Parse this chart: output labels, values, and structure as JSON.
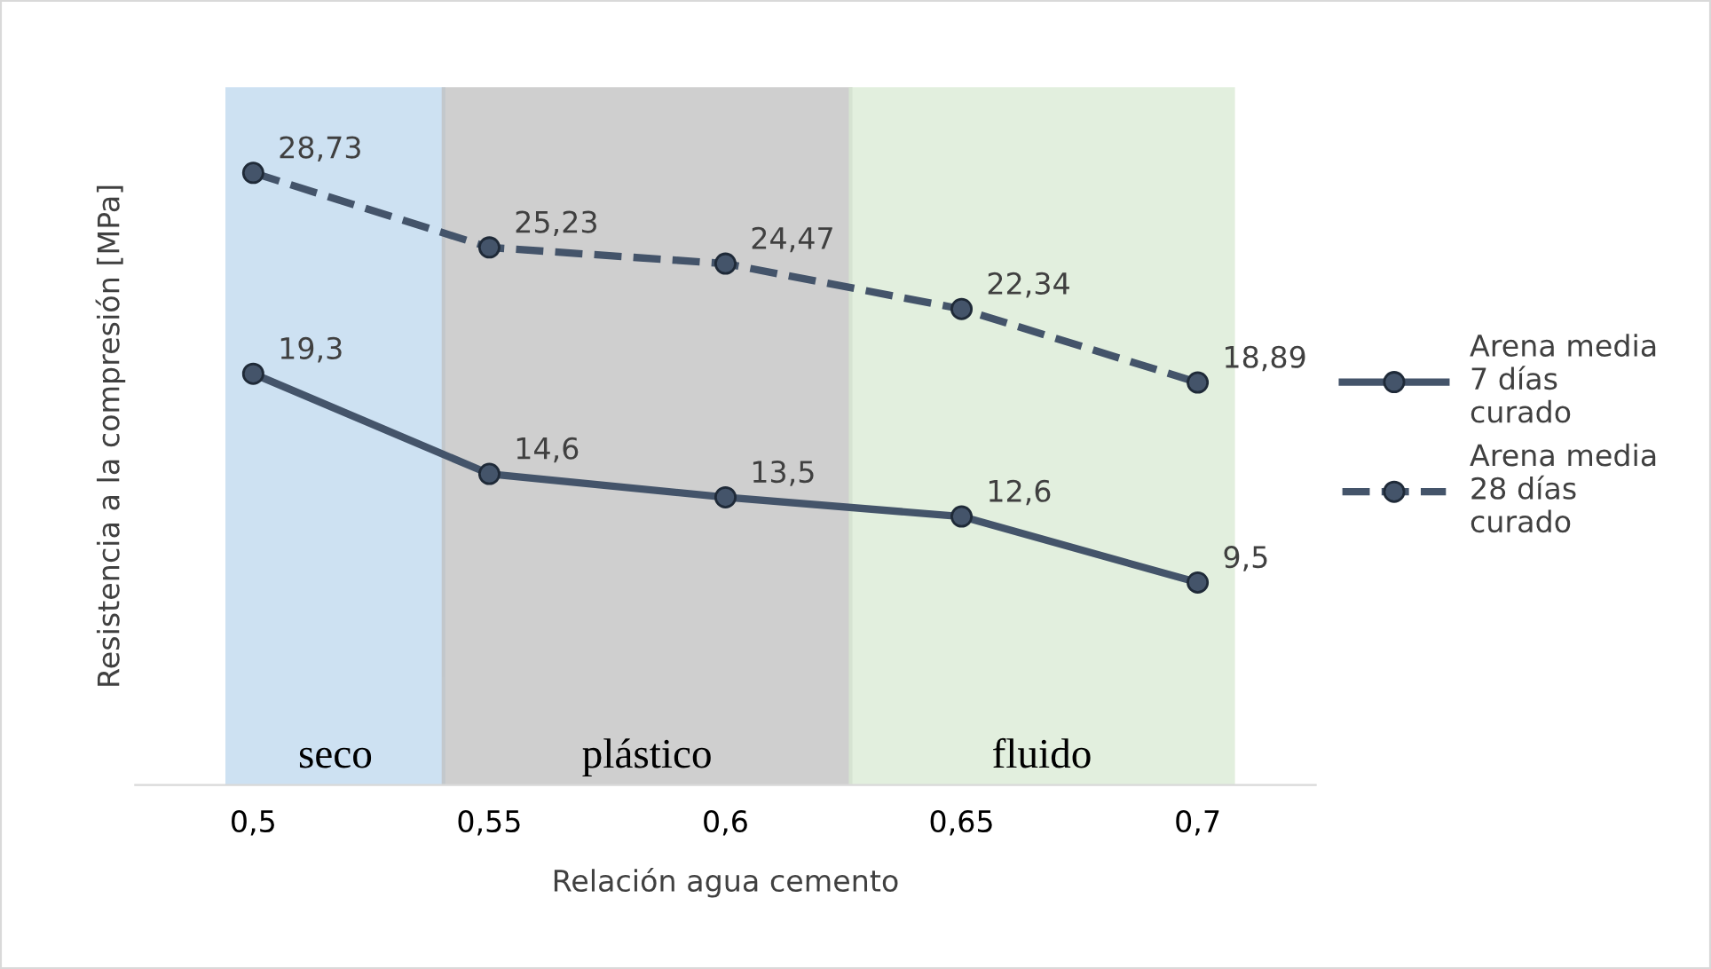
{
  "chart_data": {
    "type": "line",
    "xlabel": "Relación agua cemento",
    "ylabel": "Resistencia a la compresión [MPa]",
    "x": [
      0.5,
      0.55,
      0.6,
      0.65,
      0.7
    ],
    "xlim": [
      0.475,
      0.725
    ],
    "xticks": [
      {
        "value": 0.5,
        "label": "0,5"
      },
      {
        "value": 0.55,
        "label": "0,55"
      },
      {
        "value": 0.6,
        "label": "0,6"
      },
      {
        "value": 0.65,
        "label": "0,65"
      },
      {
        "value": 0.7,
        "label": "0,7"
      }
    ],
    "tick_labels": "x",
    "grid": false,
    "legend": "right",
    "marker": "circle",
    "series": [
      {
        "name": "Arena media 7 días curado",
        "color": "#44546a",
        "line_style": "solid",
        "values": [
          19.3,
          14.6,
          13.5,
          12.6,
          9.5
        ],
        "value_labels": [
          "19,3",
          "14,6",
          "13,5",
          "12,6",
          "9,5"
        ]
      },
      {
        "name": "Arena media 28 días curado",
        "color": "#44546a",
        "line_style": "dashed",
        "values": [
          28.73,
          25.23,
          24.47,
          22.34,
          18.89
        ],
        "value_labels": [
          "28,73",
          "25,23",
          "24,47",
          "22,34",
          "18,89"
        ]
      }
    ],
    "bands": [
      {
        "axis": "x",
        "from": 0.4945,
        "to": 0.5403,
        "label": "seco",
        "color": "#bdd7ee"
      },
      {
        "axis": "x",
        "from": 0.5403,
        "to": 0.6265,
        "label": "plástico",
        "color": "#bfbfbf"
      },
      {
        "axis": "x",
        "from": 0.6265,
        "to": 0.7075,
        "label": "fluido",
        "color": "#d9ead3"
      }
    ]
  }
}
